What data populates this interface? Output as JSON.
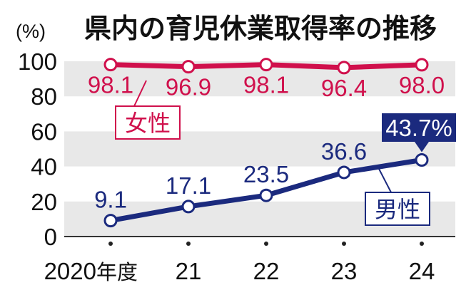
{
  "chart_data": {
    "type": "line",
    "title": "県内の育児休業取得率の推移",
    "unit_label": "(%)",
    "categories": [
      "2020年度",
      "21",
      "22",
      "23",
      "24"
    ],
    "ylim": [
      0,
      100
    ],
    "yticks": [
      0,
      20,
      40,
      60,
      80,
      100
    ],
    "grid": "alternating horizontal bands",
    "series": [
      {
        "name": "女性",
        "values": [
          98.1,
          96.9,
          98.1,
          96.4,
          98.0
        ],
        "labels": [
          "98.1",
          "96.9",
          "98.1",
          "96.4",
          "98.0"
        ],
        "color": "#d0104c"
      },
      {
        "name": "男性",
        "values": [
          9.1,
          17.1,
          23.5,
          36.6,
          43.7
        ],
        "labels": [
          "9.1",
          "17.1",
          "23.5",
          "36.6",
          "43.7%"
        ],
        "color": "#1b2a7e"
      }
    ],
    "callout": "43.7%"
  }
}
